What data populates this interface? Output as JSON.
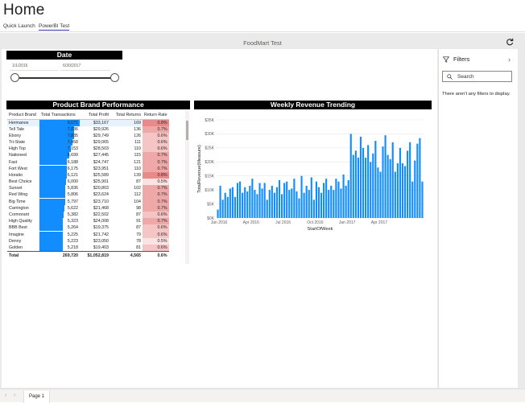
{
  "app": {
    "title": "Home"
  },
  "nav": {
    "tabs": [
      {
        "label": "Quick Launch"
      },
      {
        "label": "PowerBI Test"
      }
    ]
  },
  "report": {
    "title": "FoodMart Test",
    "icons": {
      "refresh": "refresh-icon"
    }
  },
  "date_slicer": {
    "title": "Date",
    "start": "1/1/2016",
    "end": "6/30/2017"
  },
  "brand_table": {
    "title": "Product Brand Performance",
    "columns": [
      "Product Brand",
      "Total Transactions",
      "Total Profit",
      "Total Returns",
      "Return Rate"
    ],
    "rows": [
      {
        "brand": "Hermanos",
        "transactions": "9,071",
        "profit": "$33,167",
        "returns": "169",
        "rate": "0.8%",
        "tx": 9071,
        "rr": 0.8
      },
      {
        "brand": "Tell Tale",
        "transactions": "7,836",
        "profit": "$29,926",
        "returns": "136",
        "rate": "0.7%",
        "tx": 7836,
        "rr": 0.7
      },
      {
        "brand": "Ebony",
        "transactions": "7,835",
        "profit": "$29,749",
        "returns": "126",
        "rate": "0.6%",
        "tx": 7835,
        "rr": 0.6
      },
      {
        "brand": "Tri-State",
        "transactions": "7,458",
        "profit": "$29,065",
        "returns": "111",
        "rate": "0.6%",
        "tx": 7458,
        "rr": 0.6
      },
      {
        "brand": "High Top",
        "transactions": "7,153",
        "profit": "$28,503",
        "returns": "110",
        "rate": "0.6%",
        "tx": 7153,
        "rr": 0.6
      },
      {
        "brand": "Nationeel",
        "transactions": "6,699",
        "profit": "$27,445",
        "returns": "115",
        "rate": "0.7%",
        "tx": 6699,
        "rr": 0.7
      },
      {
        "brand": "Fast",
        "transactions": "6,188",
        "profit": "$24,747",
        "returns": "121",
        "rate": "0.7%",
        "tx": 6188,
        "rr": 0.7
      },
      {
        "brand": "Fort West",
        "transactions": "6,175",
        "profit": "$23,951",
        "returns": "110",
        "rate": "0.7%",
        "tx": 6175,
        "rr": 0.7
      },
      {
        "brand": "Horatio",
        "transactions": "6,121",
        "profit": "$25,589",
        "returns": "139",
        "rate": "0.8%",
        "tx": 6121,
        "rr": 0.8
      },
      {
        "brand": "Best Choice",
        "transactions": "6,000",
        "profit": "$25,901",
        "returns": "87",
        "rate": "0.5%",
        "tx": 6000,
        "rr": 0.5
      },
      {
        "brand": "Sunset",
        "transactions": "5,836",
        "profit": "$20,803",
        "returns": "102",
        "rate": "0.7%",
        "tx": 5836,
        "rr": 0.7
      },
      {
        "brand": "Red Wing",
        "transactions": "5,806",
        "profit": "$23,624",
        "returns": "112",
        "rate": "0.7%",
        "tx": 5806,
        "rr": 0.7
      },
      {
        "brand": "Big Time",
        "transactions": "5,797",
        "profit": "$23,710",
        "returns": "104",
        "rate": "0.7%",
        "tx": 5797,
        "rr": 0.7
      },
      {
        "brand": "Carrington",
        "transactions": "5,622",
        "profit": "$21,468",
        "returns": "98",
        "rate": "0.7%",
        "tx": 5622,
        "rr": 0.7
      },
      {
        "brand": "Cormorant",
        "transactions": "5,382",
        "profit": "$22,502",
        "returns": "87",
        "rate": "0.6%",
        "tx": 5382,
        "rr": 0.6
      },
      {
        "brand": "High Quality",
        "transactions": "5,323",
        "profit": "$24,008",
        "returns": "91",
        "rate": "0.7%",
        "tx": 5323,
        "rr": 0.7
      },
      {
        "brand": "BBB Best",
        "transactions": "5,264",
        "profit": "$19,375",
        "returns": "87",
        "rate": "0.6%",
        "tx": 5264,
        "rr": 0.6
      },
      {
        "brand": "Imagine",
        "transactions": "5,225",
        "profit": "$21,742",
        "returns": "79",
        "rate": "0.6%",
        "tx": 5225,
        "rr": 0.6
      },
      {
        "brand": "Denny",
        "transactions": "5,223",
        "profit": "$23,050",
        "returns": "78",
        "rate": "0.5%",
        "tx": 5223,
        "rr": 0.5
      },
      {
        "brand": "Golden",
        "transactions": "5,218",
        "profit": "$19,403",
        "returns": "81",
        "rate": "0.6%",
        "tx": 5218,
        "rr": 0.6
      }
    ],
    "total": {
      "label": "Total",
      "transactions": "269,720",
      "profit": "$1,052,819",
      "returns": "4,565",
      "rate": "0.6%"
    },
    "colors": {
      "bar": "#118dff",
      "rate_high": "#e88a8a",
      "rate_low": "#fbe3e3"
    }
  },
  "chart_data": {
    "type": "bar",
    "title": "Weekly Revenue Trending",
    "xlabel": "StartOfWeek",
    "ylabel": "TotalRevenue(Measure)",
    "ylim": [
      0,
      35000
    ],
    "yticks": [
      "$0K",
      "$5K",
      "$10K",
      "$15K",
      "$20K",
      "$25K",
      "$30K",
      "$35K"
    ],
    "xticks": [
      "Jan 2016",
      "Apr 2016",
      "Jul 2016",
      "Oct 2016",
      "Jan 2017",
      "Apr 2017"
    ],
    "color": "#118dff",
    "values": [
      3000,
      11500,
      6500,
      9000,
      7500,
      10500,
      11000,
      7500,
      12500,
      13000,
      9000,
      11000,
      9500,
      11500,
      14000,
      10000,
      8500,
      12500,
      10500,
      12500,
      6500,
      10000,
      11500,
      9000,
      11000,
      13500,
      8500,
      12500,
      13000,
      10000,
      10500,
      14000,
      9500,
      7000,
      15000,
      9000,
      11500,
      10000,
      14500,
      6500,
      13000,
      11000,
      9000,
      12500,
      14000,
      10000,
      11500,
      10000,
      14000,
      13000,
      10500,
      15500,
      11500,
      13500,
      30000,
      22500,
      24000,
      21500,
      29000,
      25000,
      21500,
      26000,
      20000,
      23000,
      27500,
      18000,
      16500,
      25500,
      29500,
      22500,
      21000,
      27000,
      16500,
      19500,
      25000,
      19500,
      18500,
      24000,
      27000,
      13000,
      20500,
      26500,
      28500,
      13000
    ]
  },
  "filters": {
    "title": "Filters",
    "search_placeholder": "Search",
    "empty_text": "There aren't any filters to display."
  },
  "pages": {
    "prev": "‹",
    "next": "›",
    "tabs": [
      {
        "label": "Page 1"
      }
    ]
  }
}
